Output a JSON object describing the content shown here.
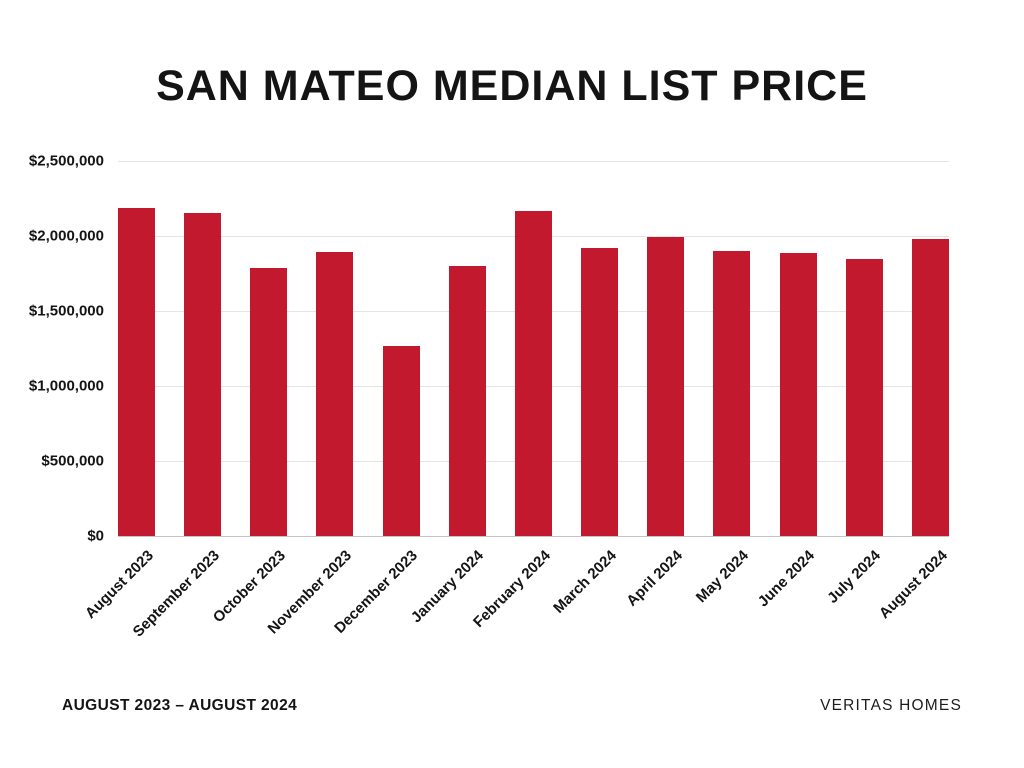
{
  "footer": {
    "date_range": "AUGUST 2023 – AUGUST 2024",
    "brand": "VERITAS HOMES"
  },
  "colors": {
    "bar": "#c2192e",
    "gridline": "#e4e4e4",
    "baseline": "#c4c4c4",
    "text": "#141414",
    "background": "#ffffff"
  },
  "chart_data": {
    "type": "bar",
    "title": "SAN MATEO MEDIAN LIST PRICE",
    "categories": [
      "August 2023",
      "September 2023",
      "October 2023",
      "November 2023",
      "December 2023",
      "January 2024",
      "February 2024",
      "March 2024",
      "April 2024",
      "May 2024",
      "June 2024",
      "July 2024",
      "August 2024"
    ],
    "values": [
      2190000,
      2155000,
      1790000,
      1895000,
      1265000,
      1800000,
      2170000,
      1920000,
      1995000,
      1900000,
      1890000,
      1850000,
      1980000
    ],
    "xlabel": "",
    "ylabel": "",
    "ylim": [
      0,
      2500000
    ],
    "y_ticks": [
      {
        "label": "$2,500,000",
        "value": 2500000
      },
      {
        "label": "$2,000,000",
        "value": 2000000
      },
      {
        "label": "$1,500,000",
        "value": 1500000
      },
      {
        "label": "$1,000,000",
        "value": 1000000
      },
      {
        "label": "$500,000",
        "value": 500000
      },
      {
        "label": "$0",
        "value": 0
      }
    ],
    "grid": true,
    "legend": false,
    "x_tick_rotation_deg": -45
  }
}
